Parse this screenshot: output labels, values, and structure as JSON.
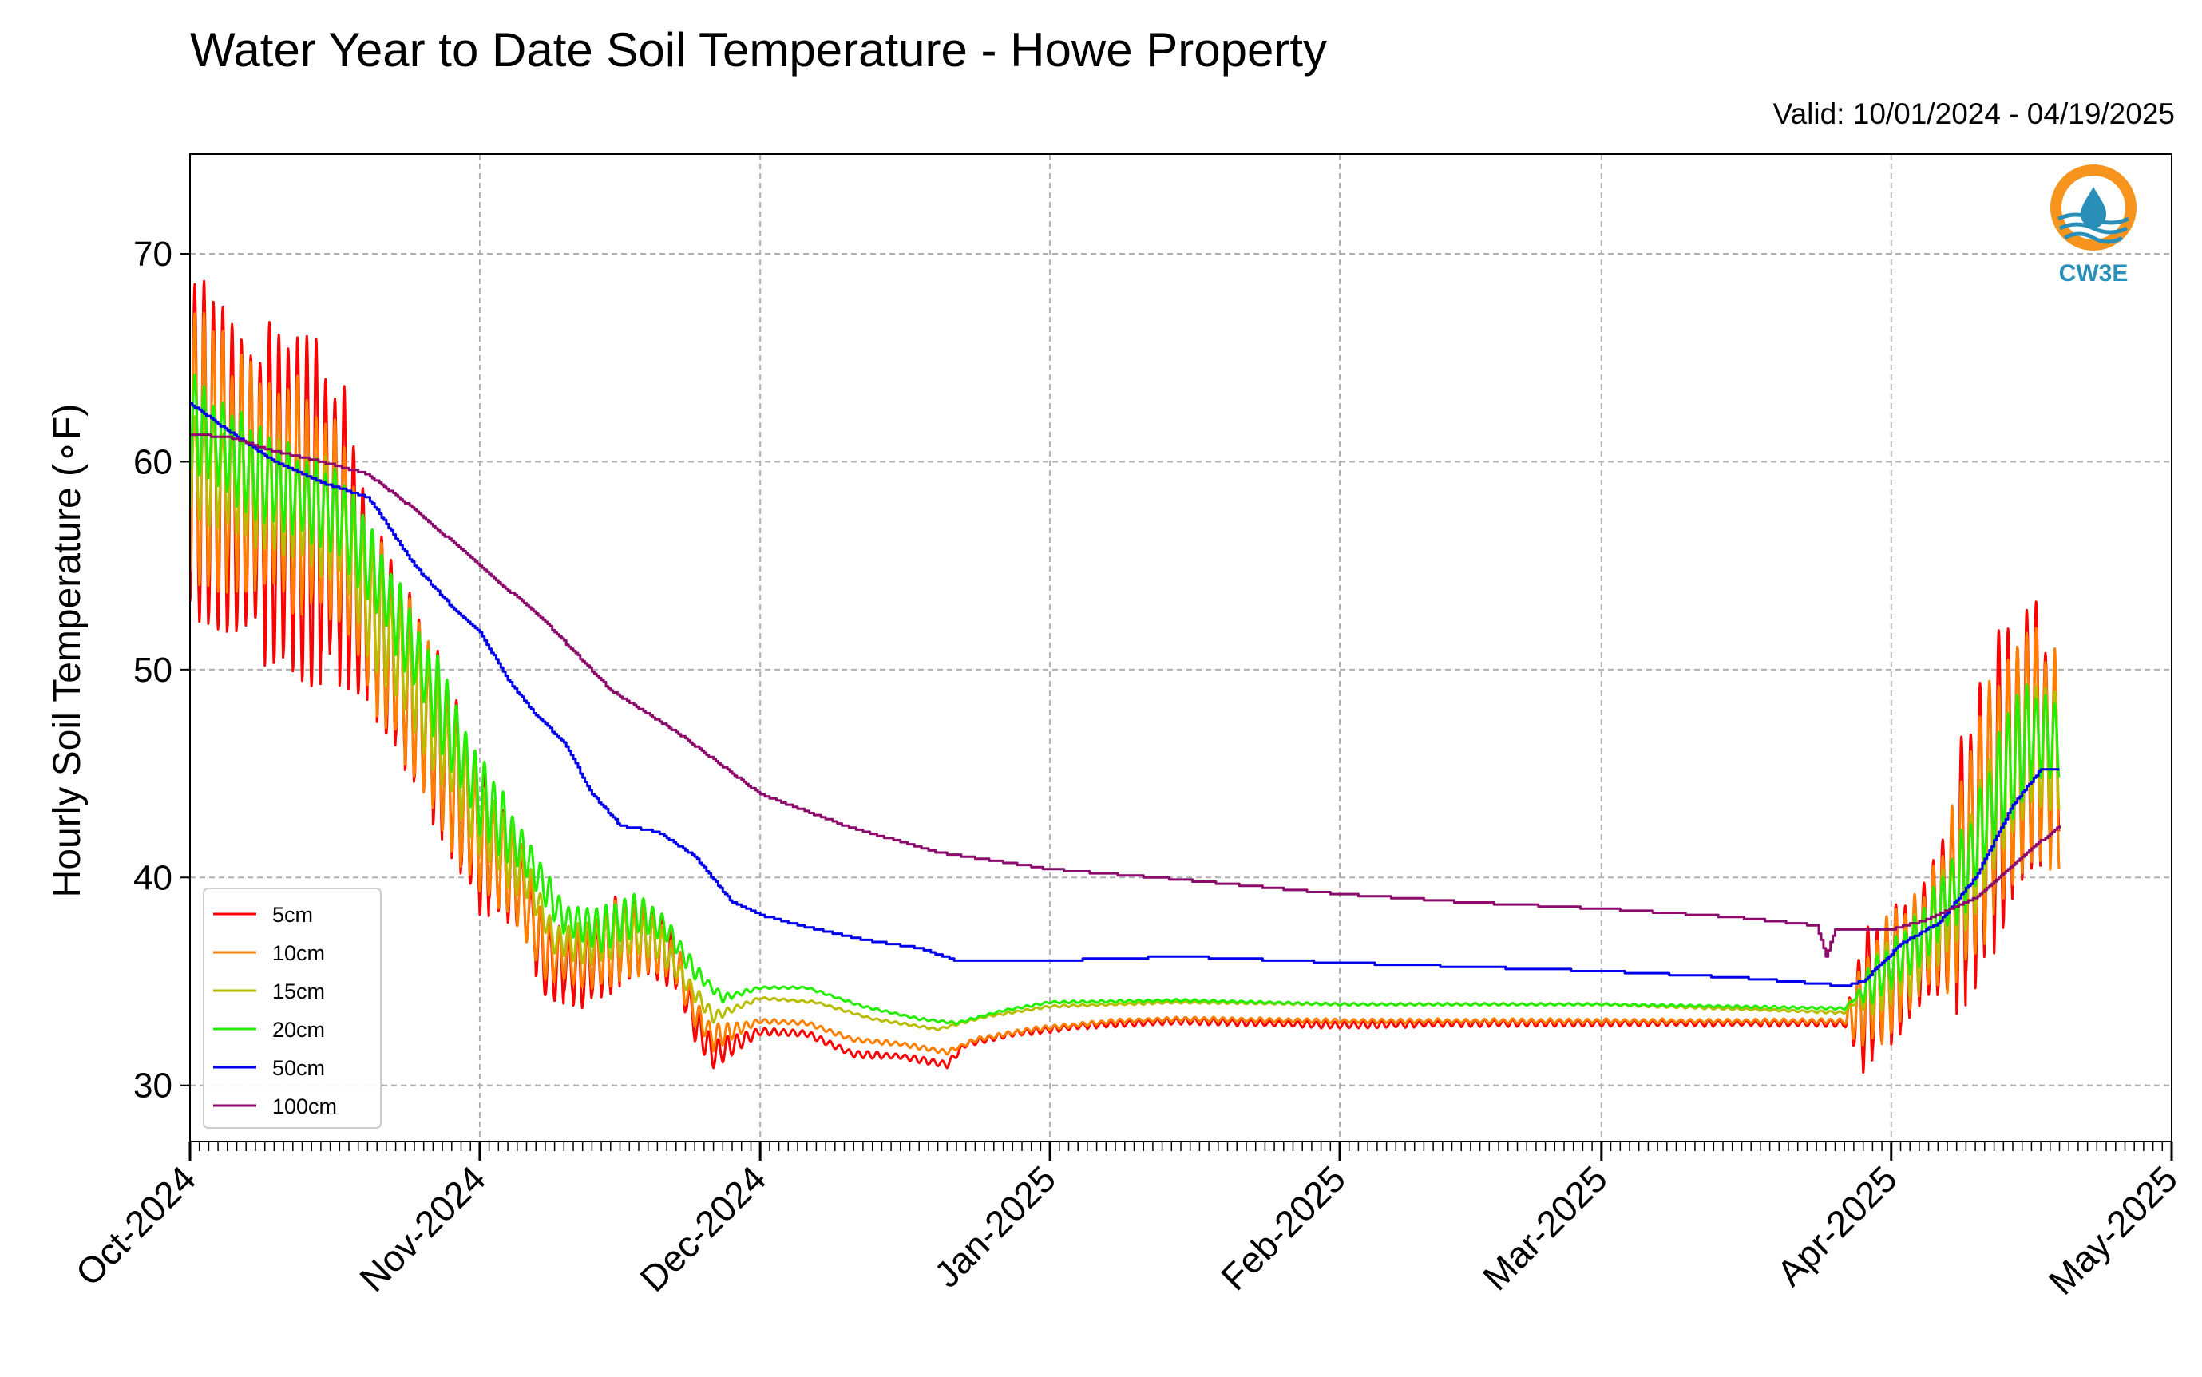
{
  "chart_data": {
    "type": "line",
    "title": "Water Year to Date Soil Temperature - Howe Property",
    "subtitle": "Valid: 10/01/2024 - 04/19/2025",
    "ylabel": "Hourly Soil Temperature (∘F)",
    "xlabel": "",
    "xlim": [
      "2024-10-01",
      "2025-05-01"
    ],
    "ylim": [
      27.3,
      74.8
    ],
    "yticks": [
      30,
      40,
      50,
      60,
      70
    ],
    "xticks": [
      {
        "date": "2024-10-01",
        "label": "Oct-2024"
      },
      {
        "date": "2024-11-01",
        "label": "Nov-2024"
      },
      {
        "date": "2024-12-01",
        "label": "Dec-2024"
      },
      {
        "date": "2025-01-01",
        "label": "Jan-2025"
      },
      {
        "date": "2025-02-01",
        "label": "Feb-2025"
      },
      {
        "date": "2025-03-01",
        "label": "Mar-2025"
      },
      {
        "date": "2025-04-01",
        "label": "Apr-2025"
      },
      {
        "date": "2025-05-01",
        "label": "May-2025"
      }
    ],
    "grid": true,
    "legend_position": "bottom-left",
    "series": [
      {
        "name": "5cm",
        "color": "#ff0000",
        "diurnal": true,
        "points": [
          [
            "2024-10-01",
            61
          ],
          [
            "2024-10-06",
            59
          ],
          [
            "2024-10-12",
            58
          ],
          [
            "2024-10-17",
            57
          ],
          [
            "2024-10-20",
            53
          ],
          [
            "2024-10-26",
            48
          ],
          [
            "2024-11-01",
            42
          ],
          [
            "2024-11-05",
            40
          ],
          [
            "2024-11-08",
            36
          ],
          [
            "2024-11-12",
            35.5
          ],
          [
            "2024-11-16",
            37
          ],
          [
            "2024-11-19",
            37
          ],
          [
            "2024-11-22",
            36
          ],
          [
            "2024-11-24",
            33
          ],
          [
            "2024-11-26",
            31.5
          ],
          [
            "2024-12-01",
            32.6
          ],
          [
            "2024-12-06",
            32.5
          ],
          [
            "2024-12-11",
            31.5
          ],
          [
            "2024-12-16",
            31.4
          ],
          [
            "2024-12-21",
            31
          ],
          [
            "2024-12-23",
            32
          ],
          [
            "2024-12-28",
            32.5
          ],
          [
            "2025-01-05",
            32.9
          ],
          [
            "2025-01-15",
            33.1
          ],
          [
            "2025-02-01",
            32.9
          ],
          [
            "2025-02-15",
            33
          ],
          [
            "2025-03-01",
            33
          ],
          [
            "2025-03-15",
            33
          ],
          [
            "2025-03-27",
            33
          ],
          [
            "2025-03-30",
            34.5
          ],
          [
            "2025-04-03",
            36
          ],
          [
            "2025-04-07",
            38.5
          ],
          [
            "2025-04-12",
            44
          ],
          [
            "2025-04-16",
            47
          ],
          [
            "2025-04-19",
            46
          ]
        ],
        "amp": [
          [
            "2024-10-01",
            14
          ],
          [
            "2024-10-17",
            14
          ],
          [
            "2024-10-20",
            9
          ],
          [
            "2024-11-01",
            7
          ],
          [
            "2024-11-08",
            3
          ],
          [
            "2024-11-16",
            4
          ],
          [
            "2024-11-24",
            2
          ],
          [
            "2024-12-01",
            0.3
          ],
          [
            "2025-03-27",
            0.3
          ],
          [
            "2025-03-29",
            6
          ],
          [
            "2025-04-05",
            6
          ],
          [
            "2025-04-10",
            14
          ],
          [
            "2025-04-19",
            10
          ]
        ]
      },
      {
        "name": "10cm",
        "color": "#ff8000",
        "diurnal": true,
        "points": [
          [
            "2024-10-01",
            61
          ],
          [
            "2024-10-06",
            59.5
          ],
          [
            "2024-10-12",
            58.5
          ],
          [
            "2024-10-17",
            57
          ],
          [
            "2024-10-20",
            53
          ],
          [
            "2024-10-26",
            48
          ],
          [
            "2024-11-01",
            42
          ],
          [
            "2024-11-05",
            40
          ],
          [
            "2024-11-08",
            36.5
          ],
          [
            "2024-11-12",
            36
          ],
          [
            "2024-11-16",
            37
          ],
          [
            "2024-11-19",
            37
          ],
          [
            "2024-11-22",
            36
          ],
          [
            "2024-11-24",
            33.5
          ],
          [
            "2024-11-26",
            32.3
          ],
          [
            "2024-12-01",
            33.1
          ],
          [
            "2024-12-06",
            33
          ],
          [
            "2024-12-11",
            32.2
          ],
          [
            "2024-12-16",
            32
          ],
          [
            "2024-12-21",
            31.6
          ],
          [
            "2024-12-24",
            32.2
          ],
          [
            "2024-12-30",
            32.7
          ],
          [
            "2025-01-08",
            33.1
          ],
          [
            "2025-01-15",
            33.2
          ],
          [
            "2025-02-01",
            33.1
          ],
          [
            "2025-03-01",
            33.1
          ],
          [
            "2025-03-27",
            33.1
          ],
          [
            "2025-03-30",
            34.5
          ],
          [
            "2025-04-03",
            36.3
          ],
          [
            "2025-04-07",
            38.5
          ],
          [
            "2025-04-12",
            44
          ],
          [
            "2025-04-16",
            46.5
          ],
          [
            "2025-04-19",
            45.5
          ]
        ],
        "amp": [
          [
            "2024-10-01",
            12
          ],
          [
            "2024-10-17",
            11
          ],
          [
            "2024-10-20",
            8
          ],
          [
            "2024-11-01",
            6
          ],
          [
            "2024-11-08",
            2.5
          ],
          [
            "2024-11-16",
            3.5
          ],
          [
            "2024-11-24",
            1.5
          ],
          [
            "2024-12-01",
            0.2
          ],
          [
            "2025-03-27",
            0.2
          ],
          [
            "2025-03-29",
            5
          ],
          [
            "2025-04-05",
            5
          ],
          [
            "2025-04-10",
            12
          ],
          [
            "2025-04-19",
            9
          ]
        ]
      },
      {
        "name": "15cm",
        "color": "#b7bd00",
        "diurnal": true,
        "points": [
          [
            "2024-10-01",
            60
          ],
          [
            "2024-10-10",
            58.5
          ],
          [
            "2024-10-17",
            57
          ],
          [
            "2024-10-20",
            53.5
          ],
          [
            "2024-10-26",
            48.5
          ],
          [
            "2024-11-01",
            43
          ],
          [
            "2024-11-06",
            40
          ],
          [
            "2024-11-09",
            37
          ],
          [
            "2024-11-13",
            36.8
          ],
          [
            "2024-11-17",
            37.3
          ],
          [
            "2024-11-20",
            37
          ],
          [
            "2024-11-23",
            35
          ],
          [
            "2024-11-26",
            33.3
          ],
          [
            "2024-12-01",
            34.2
          ],
          [
            "2024-12-07",
            34
          ],
          [
            "2024-12-13",
            33.2
          ],
          [
            "2024-12-20",
            32.7
          ],
          [
            "2024-12-25",
            33.3
          ],
          [
            "2025-01-01",
            33.8
          ],
          [
            "2025-01-15",
            34
          ],
          [
            "2025-02-01",
            33.9
          ],
          [
            "2025-03-01",
            33.9
          ],
          [
            "2025-03-27",
            33.5
          ],
          [
            "2025-03-30",
            34.8
          ],
          [
            "2025-04-04",
            36.5
          ],
          [
            "2025-04-09",
            40
          ],
          [
            "2025-04-13",
            44.5
          ],
          [
            "2025-04-16",
            46.5
          ],
          [
            "2025-04-19",
            46
          ]
        ],
        "amp": [
          [
            "2024-10-01",
            5
          ],
          [
            "2024-10-17",
            5
          ],
          [
            "2024-11-01",
            4
          ],
          [
            "2024-11-08",
            1.5
          ],
          [
            "2024-11-17",
            2
          ],
          [
            "2024-11-25",
            0.6
          ],
          [
            "2024-12-01",
            0.1
          ],
          [
            "2025-03-28",
            0.1
          ],
          [
            "2025-03-30",
            2.5
          ],
          [
            "2025-04-08",
            4
          ],
          [
            "2025-04-13",
            6
          ],
          [
            "2025-04-19",
            5
          ]
        ]
      },
      {
        "name": "20cm",
        "color": "#22ee00",
        "diurnal": true,
        "points": [
          [
            "2024-10-01",
            62
          ],
          [
            "2024-10-08",
            59.5
          ],
          [
            "2024-10-17",
            57.5
          ],
          [
            "2024-10-21",
            54.5
          ],
          [
            "2024-10-27",
            49
          ],
          [
            "2024-11-01",
            44
          ],
          [
            "2024-11-06",
            41
          ],
          [
            "2024-11-10",
            38
          ],
          [
            "2024-11-14",
            37.5
          ],
          [
            "2024-11-18",
            38.3
          ],
          [
            "2024-11-21",
            37.5
          ],
          [
            "2024-11-24",
            35.5
          ],
          [
            "2024-11-27",
            34.2
          ],
          [
            "2024-12-01",
            34.7
          ],
          [
            "2024-12-06",
            34.7
          ],
          [
            "2024-12-12",
            33.8
          ],
          [
            "2024-12-18",
            33.2
          ],
          [
            "2024-12-22",
            33
          ],
          [
            "2024-12-27",
            33.6
          ],
          [
            "2025-01-01",
            34
          ],
          [
            "2025-01-15",
            34.1
          ],
          [
            "2025-02-01",
            33.9
          ],
          [
            "2025-03-01",
            33.9
          ],
          [
            "2025-03-27",
            33.7
          ],
          [
            "2025-03-30",
            35
          ],
          [
            "2025-04-04",
            37
          ],
          [
            "2025-04-09",
            40.5
          ],
          [
            "2025-04-13",
            45
          ],
          [
            "2025-04-16",
            47
          ],
          [
            "2025-04-19",
            46.5
          ]
        ],
        "amp": [
          [
            "2024-10-01",
            4
          ],
          [
            "2024-10-17",
            4
          ],
          [
            "2024-11-01",
            3.5
          ],
          [
            "2024-11-08",
            1.5
          ],
          [
            "2024-11-17",
            2
          ],
          [
            "2024-11-25",
            0.5
          ],
          [
            "2024-12-01",
            0.1
          ],
          [
            "2025-03-28",
            0.1
          ],
          [
            "2025-03-30",
            2
          ],
          [
            "2025-04-08",
            3.5
          ],
          [
            "2025-04-13",
            5
          ],
          [
            "2025-04-19",
            4
          ]
        ]
      },
      {
        "name": "50cm",
        "color": "#0000ee",
        "diurnal": false,
        "points": [
          [
            "2024-10-01",
            62.8
          ],
          [
            "2024-10-05",
            61.5
          ],
          [
            "2024-10-10",
            60
          ],
          [
            "2024-10-15",
            59
          ],
          [
            "2024-10-20",
            58.3
          ],
          [
            "2024-10-22",
            57
          ],
          [
            "2024-10-25",
            55
          ],
          [
            "2024-10-29",
            53
          ],
          [
            "2024-11-01",
            51.8
          ],
          [
            "2024-11-04",
            49.5
          ],
          [
            "2024-11-07",
            47.8
          ],
          [
            "2024-11-10",
            46.5
          ],
          [
            "2024-11-13",
            44
          ],
          [
            "2024-11-16",
            42.5
          ],
          [
            "2024-11-20",
            42.2
          ],
          [
            "2024-11-24",
            41
          ],
          [
            "2024-11-28",
            38.8
          ],
          [
            "2024-12-01",
            38.2
          ],
          [
            "2024-12-06",
            37.6
          ],
          [
            "2024-12-12",
            37
          ],
          [
            "2024-12-18",
            36.6
          ],
          [
            "2024-12-22",
            36
          ],
          [
            "2025-01-01",
            36
          ],
          [
            "2025-01-15",
            36.2
          ],
          [
            "2025-02-01",
            35.9
          ],
          [
            "2025-02-15",
            35.7
          ],
          [
            "2025-03-01",
            35.5
          ],
          [
            "2025-03-15",
            35.2
          ],
          [
            "2025-03-27",
            34.8
          ],
          [
            "2025-03-29",
            35
          ],
          [
            "2025-04-02",
            36.8
          ],
          [
            "2025-04-06",
            37.8
          ],
          [
            "2025-04-10",
            40
          ],
          [
            "2025-04-14",
            43.5
          ],
          [
            "2025-04-17",
            45.2
          ],
          [
            "2025-04-19",
            45.2
          ]
        ]
      },
      {
        "name": "100cm",
        "color": "#8b0a6b",
        "diurnal": false,
        "points": [
          [
            "2024-10-01",
            61.3
          ],
          [
            "2024-10-05",
            61.2
          ],
          [
            "2024-10-10",
            60.5
          ],
          [
            "2024-10-15",
            60
          ],
          [
            "2024-10-20",
            59.4
          ],
          [
            "2024-10-25",
            57.7
          ],
          [
            "2024-11-01",
            55
          ],
          [
            "2024-11-08",
            52.3
          ],
          [
            "2024-11-15",
            49
          ],
          [
            "2024-11-22",
            47
          ],
          [
            "2024-12-01",
            44
          ],
          [
            "2024-12-10",
            42.5
          ],
          [
            "2024-12-20",
            41.2
          ],
          [
            "2025-01-01",
            40.4
          ],
          [
            "2025-01-15",
            39.9
          ],
          [
            "2025-02-01",
            39.2
          ],
          [
            "2025-02-15",
            38.8
          ],
          [
            "2025-03-01",
            38.5
          ],
          [
            "2025-03-15",
            38.1
          ],
          [
            "2025-03-24",
            37.7
          ],
          [
            "2025-03-25",
            36.2
          ],
          [
            "2025-03-26",
            37.5
          ],
          [
            "2025-04-01",
            37.5
          ],
          [
            "2025-04-05",
            38
          ],
          [
            "2025-04-10",
            39
          ],
          [
            "2025-04-15",
            41
          ],
          [
            "2025-04-19",
            42.5
          ]
        ]
      }
    ]
  },
  "logo": {
    "text": "CW3E",
    "color": "#2a8fb8",
    "accent": "#f7941d"
  }
}
